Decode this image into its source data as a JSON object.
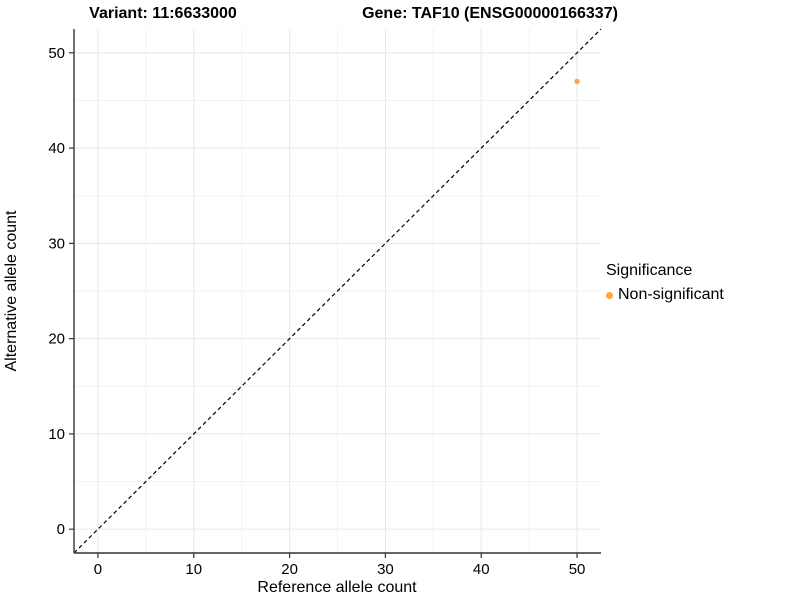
{
  "titles": {
    "left": "Variant: 11:6633000",
    "right": "Gene: TAF10 (ENSG00000166337)"
  },
  "chart_data": {
    "type": "scatter",
    "title": "Variant: 11:6633000 / Gene: TAF10 (ENSG00000166337)",
    "xlabel": "Reference allele count",
    "ylabel": "Alternative allele count",
    "xlim": [
      -2.5,
      52.5
    ],
    "ylim": [
      -2.5,
      52.5
    ],
    "xticks": [
      0,
      10,
      20,
      30,
      40,
      50
    ],
    "yticks": [
      0,
      10,
      20,
      30,
      40,
      50
    ],
    "grid": "on",
    "grid_minor_step": 5,
    "reference_line": {
      "type": "identity y=x",
      "style": "dashed",
      "color": "#000000"
    },
    "series": [
      {
        "name": "Non-significant",
        "color": "#FFA640",
        "points": [
          {
            "x": 50,
            "y": 47
          }
        ]
      }
    ],
    "legend": {
      "title": "Significance",
      "position": "right",
      "items": [
        {
          "label": "Non-significant",
          "color": "#FFA640"
        }
      ]
    },
    "colors": {
      "axis_line": "#333333",
      "tick_mark": "#333333",
      "grid_major": "#e7e7e7",
      "grid_minor": "#f2f2f2",
      "text": "#000000",
      "background": "#ffffff"
    }
  }
}
